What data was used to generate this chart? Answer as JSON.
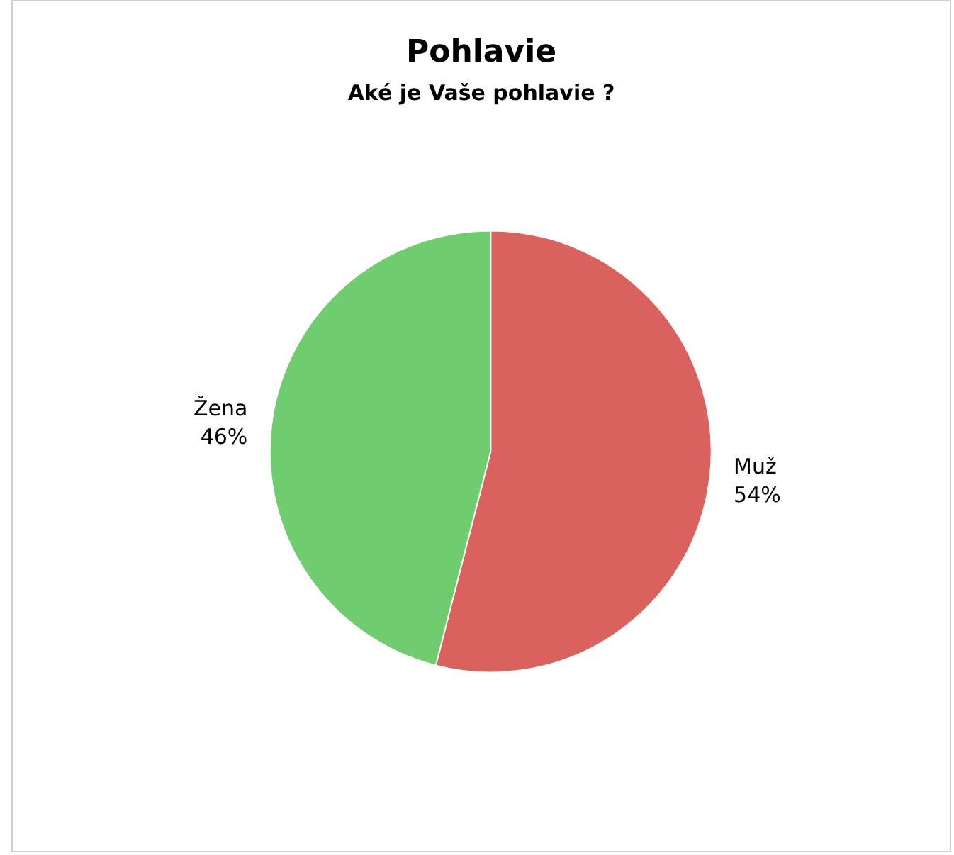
{
  "chart_data": {
    "type": "pie",
    "title": "Pohlavie",
    "subtitle": "Aké je Vaše pohlavie ?",
    "categories": [
      "Muž",
      "Žena"
    ],
    "values": [
      54,
      46
    ],
    "value_labels": [
      "54%",
      "46%"
    ],
    "colors": [
      "#d9625f",
      "#6fcc6f"
    ],
    "legend": false
  }
}
